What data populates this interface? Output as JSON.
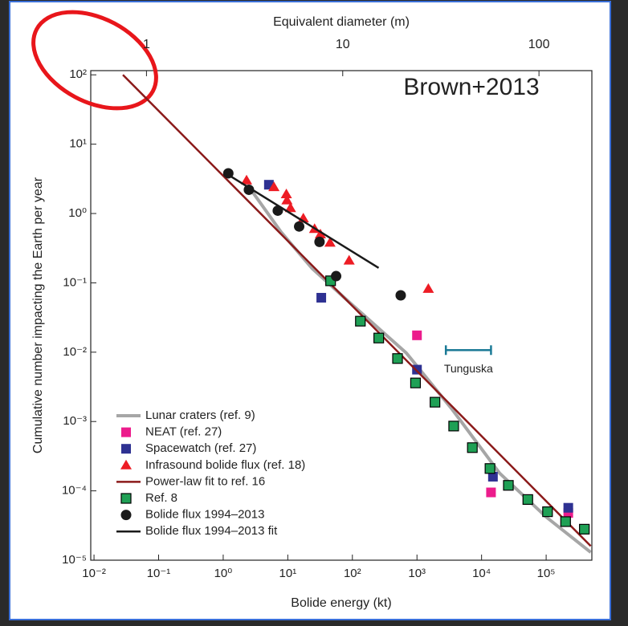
{
  "chart_data": {
    "type": "scatter",
    "title": "Brown+2013",
    "xlabel": "Bolide energy (kt)",
    "ylabel": "Cumulative number impacting the Earth per year",
    "x2label": "Equivalent diameter (m)",
    "xscale": "log",
    "yscale": "log",
    "x2scale": "log",
    "xlim": [
      0.0089,
      510000
    ],
    "ylim": [
      1e-05,
      115
    ],
    "x2lim": [
      0.52,
      186
    ],
    "xticks": [
      {
        "value": 0.01,
        "label": "10⁻²"
      },
      {
        "value": 0.1,
        "label": "10⁻¹"
      },
      {
        "value": 1,
        "label": "10⁰"
      },
      {
        "value": 10,
        "label": "10¹"
      },
      {
        "value": 100,
        "label": "10²"
      },
      {
        "value": 1000,
        "label": "10³"
      },
      {
        "value": 10000,
        "label": "10⁴"
      },
      {
        "value": 100000,
        "label": "10⁵"
      }
    ],
    "yticks": [
      {
        "value": 1e-05,
        "label": "10⁻⁵"
      },
      {
        "value": 0.0001,
        "label": "10⁻⁴"
      },
      {
        "value": 0.001,
        "label": "10⁻³"
      },
      {
        "value": 0.01,
        "label": "10⁻²"
      },
      {
        "value": 0.1,
        "label": "10⁻¹"
      },
      {
        "value": 1,
        "label": "10⁰"
      },
      {
        "value": 10,
        "label": "10¹"
      },
      {
        "value": 100,
        "label": "10²"
      }
    ],
    "x2ticks": [
      1,
      10,
      100
    ],
    "legend": "lower left",
    "series": [
      {
        "name": "Lunar craters (ref. 9)",
        "marker": "line",
        "color": "#a6a6a6",
        "x": [
          2.6,
          8,
          24,
          100,
          680,
          3500,
          19000,
          100000,
          490000
        ],
        "y": [
          2.3,
          0.53,
          0.16,
          0.048,
          0.0098,
          0.0015,
          0.00018,
          4.2e-05,
          1.3e-05
        ]
      },
      {
        "name": "NEAT (ref. 27)",
        "marker": "square",
        "color": "#ec1c8c",
        "x": [
          1000,
          14000,
          220000
        ],
        "y": [
          0.0175,
          9.5e-05,
          4.8e-05
        ]
      },
      {
        "name": "Spacewatch (ref. 27)",
        "marker": "square",
        "color": "#2e3192",
        "x": [
          5.1,
          33,
          1000,
          15000,
          220000
        ],
        "y": [
          2.6,
          0.061,
          0.0056,
          0.00016,
          5.7e-05
        ]
      },
      {
        "name": "Infrasound bolide flux (ref. 18)",
        "marker": "triangle",
        "color": "#ed1c24",
        "x": [
          2.3,
          6.1,
          9.5,
          9.7,
          11,
          17.4,
          26,
          32,
          45,
          89,
          1500
        ],
        "y": [
          3,
          2.4,
          1.9,
          1.55,
          1.2,
          0.85,
          0.6,
          0.5,
          0.38,
          0.21,
          0.082
        ]
      },
      {
        "name": "Power-law fit to ref. 16",
        "marker": "line",
        "color": "#8b1a1a",
        "x": [
          0.028,
          490000
        ],
        "y": [
          100,
          1.6e-05
        ]
      },
      {
        "name": "Ref. 8",
        "marker": "square",
        "color": "#1fa055",
        "edgecolor": "#000000",
        "x": [
          46,
          133,
          256,
          500,
          950,
          1900,
          3700,
          7200,
          13500,
          26000,
          52000,
          105000,
          200000,
          390000
        ],
        "y": [
          0.107,
          0.028,
          0.016,
          0.0081,
          0.0036,
          0.0019,
          0.00086,
          0.00042,
          0.00021,
          0.00012,
          7.5e-05,
          5e-05,
          3.6e-05,
          2.8e-05
        ]
      },
      {
        "name": "Bolide flux 1994–2013",
        "marker": "circle",
        "color": "#1a1a1a",
        "x": [
          1.2,
          2.5,
          7,
          15,
          31,
          56,
          560
        ],
        "y": [
          3.8,
          2.2,
          1.1,
          0.65,
          0.39,
          0.125,
          0.066
        ]
      },
      {
        "name": "Bolide flux 1994–2013 fit",
        "marker": "line",
        "color": "#1a1a1a",
        "x": [
          1.15,
          255
        ],
        "y": [
          3.7,
          0.164
        ]
      }
    ],
    "annotation": {
      "text": "Tunguska",
      "x": [
        2800,
        14000
      ],
      "y": 0.0107,
      "color": "#1b7a96"
    }
  }
}
